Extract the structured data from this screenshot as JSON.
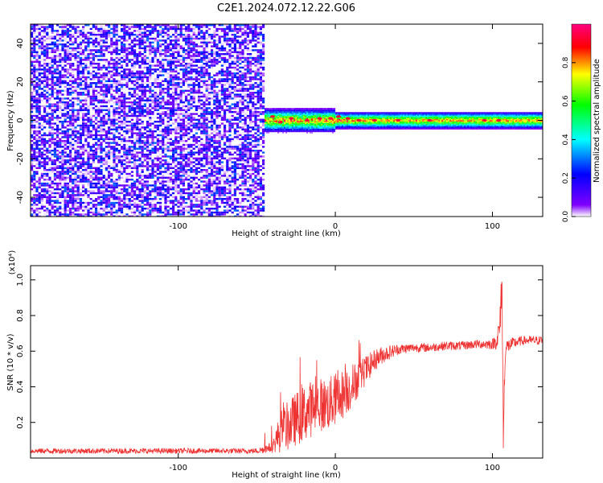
{
  "title": "C2E1.2024.072.12.22.G06",
  "chart_data": [
    {
      "type": "heatmap",
      "xlabel": "Height of straight line (km)",
      "ylabel": "Frequency (Hz)",
      "xlim": [
        -194,
        132
      ],
      "ylim": [
        -50,
        50
      ],
      "xticks": [
        -100,
        0,
        100
      ],
      "yticks": [
        -40,
        -20,
        0,
        20,
        40
      ],
      "colorbar": {
        "label": "Normalized spectral amplitude",
        "range": [
          0.0,
          1.0
        ],
        "ticks": [
          "0.0",
          "0.2",
          "0.4",
          "0.6",
          "0.8"
        ],
        "stops": [
          "#ffffff",
          "#8000ff",
          "#0000ff",
          "#00ffff",
          "#00ff00",
          "#ffff00",
          "#ff0000",
          "#ff0080"
        ]
      },
      "regions": [
        {
          "name": "noise",
          "x_range": [
            -194,
            -45
          ],
          "y_range": [
            -50,
            50
          ],
          "amplitude": [
            0.0,
            0.3
          ]
        },
        {
          "name": "signal",
          "x_range": [
            -45,
            132
          ],
          "y_center": 0,
          "half_width_hz": [
            5,
            3
          ],
          "amplitude": [
            0.4,
            1.0
          ]
        }
      ],
      "peak_points": [
        {
          "x": -40,
          "y": 2
        },
        {
          "x": -35,
          "y": -1
        },
        {
          "x": -28,
          "y": 1
        },
        {
          "x": -18,
          "y": 0
        },
        {
          "x": -10,
          "y": 1
        },
        {
          "x": -3,
          "y": 1
        },
        {
          "x": 2,
          "y": 2
        },
        {
          "x": 8,
          "y": 1
        },
        {
          "x": 15,
          "y": 0
        },
        {
          "x": 25,
          "y": 0
        },
        {
          "x": 40,
          "y": 0
        },
        {
          "x": 60,
          "y": 0
        },
        {
          "x": 95,
          "y": 0
        },
        {
          "x": 104,
          "y": 0
        }
      ]
    },
    {
      "type": "line",
      "xlabel": "Height of straight line (km)",
      "ylabel": "SNR (10 * v/v)",
      "multiplier": "(x10⁴)",
      "xlim": [
        -194,
        132
      ],
      "ylim": [
        0.0,
        1.08
      ],
      "xticks": [
        -100,
        0,
        100
      ],
      "yticks": [
        0.2,
        0.4,
        0.6,
        0.8,
        1.0
      ],
      "series": [
        {
          "color": "#ee3333",
          "x": [
            -194,
            -150,
            -100,
            -50,
            -40,
            -35,
            -30,
            -25,
            -20,
            -15,
            -10,
            -5,
            0,
            5,
            10,
            15,
            20,
            25,
            30,
            40,
            50,
            60,
            70,
            80,
            90,
            100,
            103,
            105,
            106,
            107,
            108,
            110,
            115,
            120,
            132
          ],
          "y": [
            0.04,
            0.04,
            0.04,
            0.04,
            0.06,
            0.15,
            0.18,
            0.22,
            0.25,
            0.28,
            0.3,
            0.3,
            0.33,
            0.36,
            0.4,
            0.45,
            0.5,
            0.55,
            0.58,
            0.61,
            0.62,
            0.62,
            0.63,
            0.63,
            0.64,
            0.64,
            0.66,
            0.75,
            1.05,
            0.1,
            0.6,
            0.63,
            0.65,
            0.66,
            0.66
          ],
          "noise": [
            0.015,
            0.015,
            0.015,
            0.015,
            0.03,
            0.12,
            0.14,
            0.15,
            0.16,
            0.16,
            0.15,
            0.15,
            0.15,
            0.14,
            0.13,
            0.1,
            0.08,
            0.06,
            0.05,
            0.03,
            0.025,
            0.025,
            0.025,
            0.025,
            0.025,
            0.03,
            0.05,
            0.12,
            0.15,
            0.15,
            0.08,
            0.04,
            0.03,
            0.025,
            0.025
          ]
        }
      ]
    }
  ]
}
